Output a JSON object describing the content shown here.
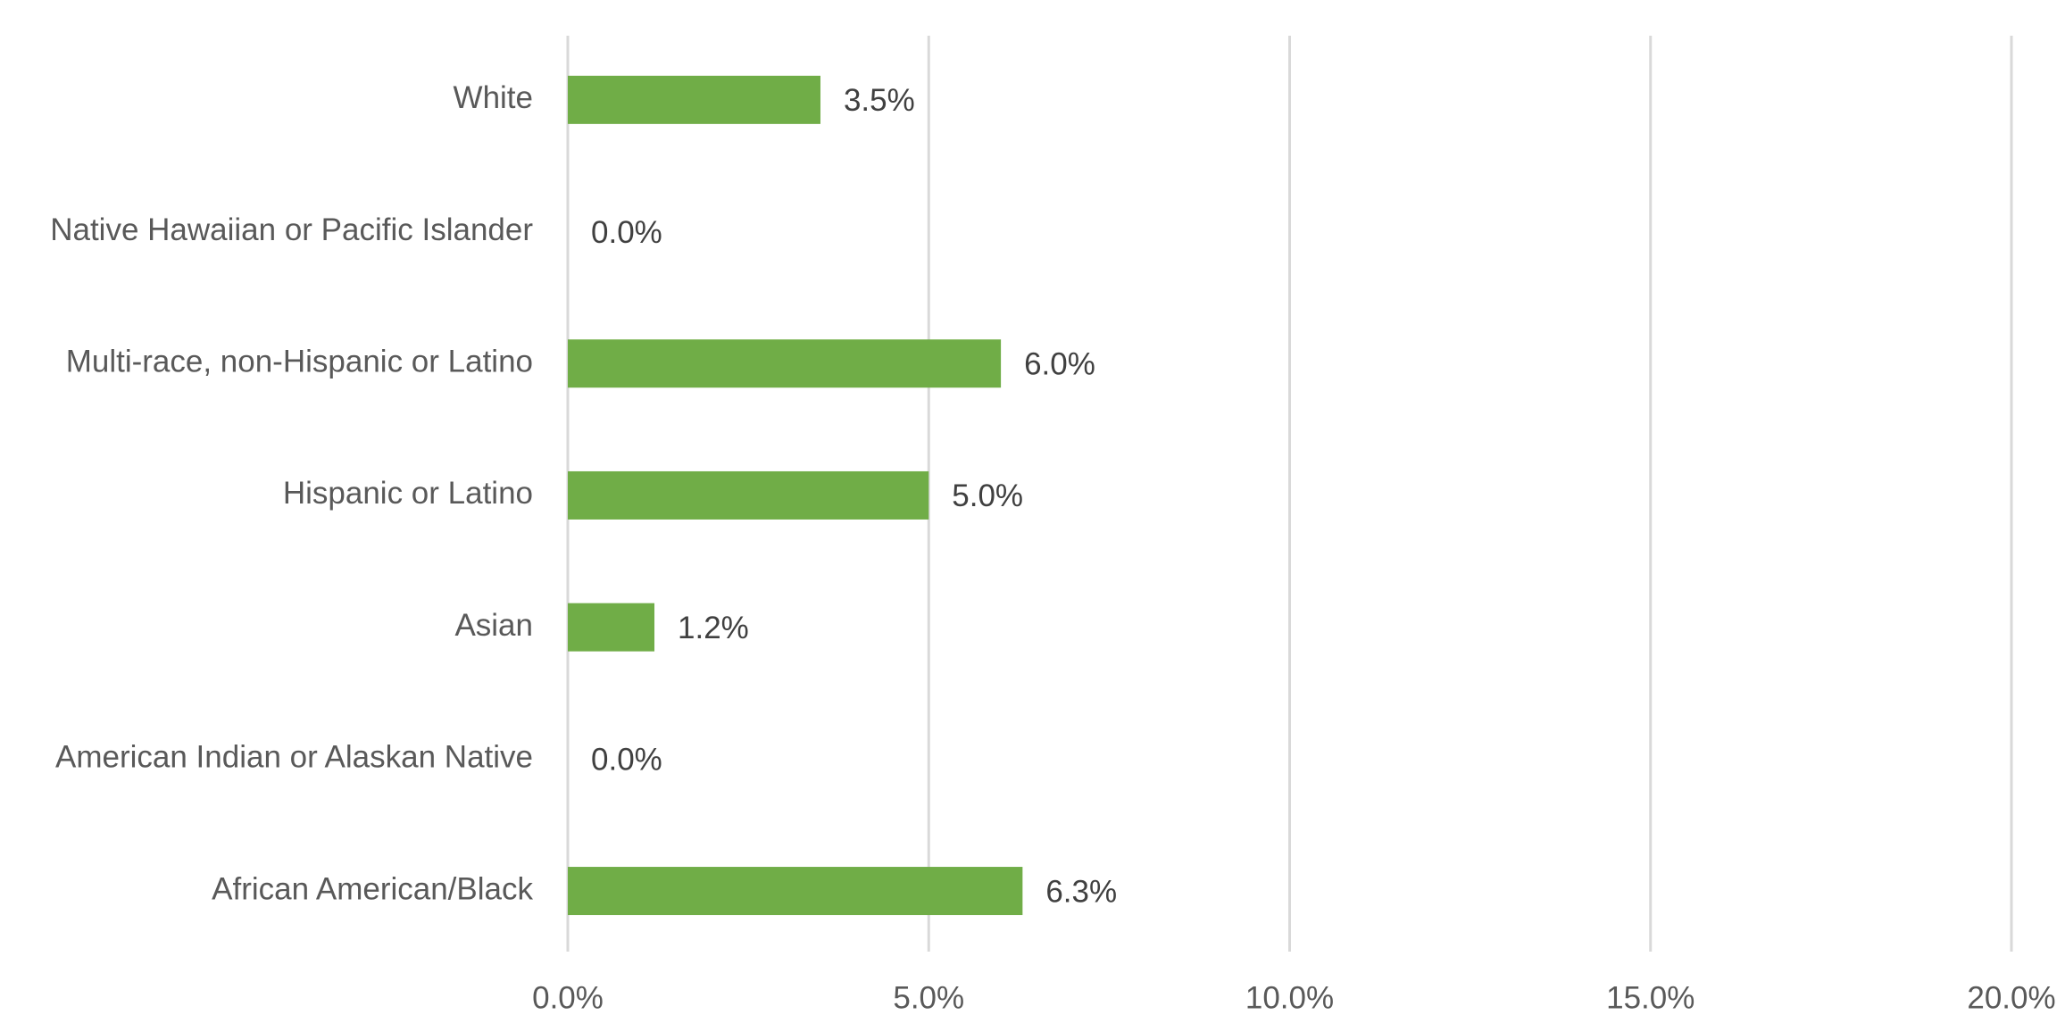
{
  "chart_data": {
    "type": "barh",
    "categories": [
      "White",
      "Native Hawaiian or Pacific Islander",
      "Multi-race, non-Hispanic or Latino",
      "Hispanic or Latino",
      "Asian",
      "American Indian or Alaskan Native",
      "African American/Black"
    ],
    "values": [
      3.5,
      0.0,
      6.0,
      5.0,
      1.2,
      0.0,
      6.3
    ],
    "value_labels": [
      "3.5%",
      "0.0%",
      "6.0%",
      "5.0%",
      "1.2%",
      "0.0%",
      "6.3%"
    ],
    "color": "#70ad47",
    "xlim": [
      0,
      20
    ],
    "xticks": [
      {
        "value": 0,
        "label": "0.0%"
      },
      {
        "value": 5,
        "label": "5.0%"
      },
      {
        "value": 10,
        "label": "10.0%"
      },
      {
        "value": 15,
        "label": "15.0%"
      },
      {
        "value": 20,
        "label": "20.0%"
      }
    ],
    "grid": true
  }
}
